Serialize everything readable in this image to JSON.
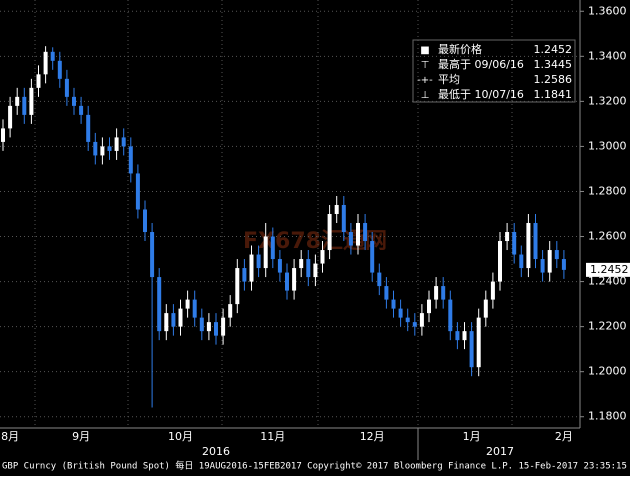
{
  "chart_data": {
    "type": "candlestick",
    "categories": [
      null,
      "8月",
      null,
      null,
      null,
      null,
      null,
      null,
      null,
      null,
      null,
      "9月",
      null,
      null,
      null,
      null,
      null,
      null,
      null,
      null,
      null,
      null,
      null,
      null,
      null,
      "10月",
      null,
      null,
      null,
      null,
      null,
      null,
      null,
      null,
      null,
      null,
      null,
      null,
      "11月",
      null,
      null,
      null,
      null,
      null,
      null,
      null,
      null,
      null,
      null,
      null,
      null,
      null,
      "12月",
      null,
      null,
      null,
      null,
      null,
      null,
      null,
      null,
      null,
      null,
      null,
      null,
      null,
      "1月",
      null,
      null,
      null,
      null,
      null,
      null,
      null,
      null,
      null,
      null,
      null,
      null,
      "2月"
    ],
    "year_categories": [
      null,
      null,
      null,
      null,
      null,
      null,
      null,
      null,
      null,
      null,
      null,
      null,
      null,
      null,
      null,
      null,
      null,
      null,
      null,
      null,
      null,
      null,
      null,
      null,
      null,
      null,
      null,
      null,
      null,
      null,
      "2016",
      null,
      null,
      null,
      null,
      null,
      null,
      null,
      null,
      null,
      null,
      null,
      null,
      null,
      null,
      null,
      null,
      null,
      null,
      null,
      null,
      null,
      null,
      null,
      null,
      null,
      null,
      null,
      null,
      null,
      null,
      null,
      null,
      null,
      null,
      null,
      null,
      null,
      null,
      null,
      "2017",
      null,
      null,
      null,
      null,
      null,
      null,
      null,
      null,
      null
    ],
    "open": [
      1.302,
      1.308,
      1.318,
      1.322,
      1.314,
      1.326,
      1.332,
      1.342,
      1.338,
      1.33,
      1.322,
      1.318,
      1.314,
      1.302,
      1.296,
      1.3,
      1.298,
      1.304,
      1.3,
      1.288,
      1.272,
      1.262,
      1.242,
      1.218,
      1.226,
      1.22,
      1.228,
      1.232,
      1.224,
      1.218,
      1.222,
      1.216,
      1.224,
      1.23,
      1.246,
      1.24,
      1.252,
      1.246,
      1.26,
      1.25,
      1.244,
      1.236,
      1.246,
      1.25,
      1.242,
      1.248,
      1.254,
      1.27,
      1.274,
      1.262,
      1.256,
      1.266,
      1.258,
      1.244,
      1.238,
      1.232,
      1.228,
      1.224,
      1.222,
      1.22,
      1.226,
      1.232,
      1.238,
      1.232,
      1.218,
      1.214,
      1.218,
      1.202,
      1.224,
      1.232,
      1.24,
      1.258,
      1.262,
      1.252,
      1.246,
      1.266,
      1.25,
      1.244,
      1.254,
      1.25
    ],
    "high": [
      1.312,
      1.322,
      1.326,
      1.326,
      1.33,
      1.336,
      1.3445,
      1.344,
      1.342,
      1.334,
      1.326,
      1.322,
      1.318,
      1.306,
      1.304,
      1.304,
      1.308,
      1.308,
      1.304,
      1.292,
      1.276,
      1.266,
      1.246,
      1.23,
      1.23,
      1.232,
      1.236,
      1.236,
      1.228,
      1.226,
      1.226,
      1.228,
      1.234,
      1.25,
      1.25,
      1.256,
      1.256,
      1.266,
      1.264,
      1.254,
      1.248,
      1.25,
      1.254,
      1.254,
      1.252,
      1.258,
      1.274,
      1.278,
      1.278,
      1.266,
      1.27,
      1.27,
      1.262,
      1.248,
      1.242,
      1.236,
      1.232,
      1.228,
      1.226,
      1.23,
      1.236,
      1.242,
      1.242,
      1.236,
      1.222,
      1.222,
      1.222,
      1.228,
      1.236,
      1.244,
      1.262,
      1.266,
      1.266,
      1.256,
      1.27,
      1.27,
      1.254,
      1.258,
      1.258,
      1.254
    ],
    "low": [
      1.298,
      1.304,
      1.314,
      1.31,
      1.31,
      1.322,
      1.328,
      1.334,
      1.326,
      1.318,
      1.314,
      1.31,
      1.298,
      1.292,
      1.292,
      1.294,
      1.294,
      1.296,
      1.284,
      1.268,
      1.258,
      1.1841,
      1.214,
      1.214,
      1.216,
      1.216,
      1.224,
      1.22,
      1.214,
      1.214,
      1.212,
      1.212,
      1.22,
      1.226,
      1.236,
      1.236,
      1.242,
      1.242,
      1.246,
      1.24,
      1.232,
      1.232,
      1.242,
      1.238,
      1.238,
      1.244,
      1.25,
      1.266,
      1.258,
      1.252,
      1.252,
      1.254,
      1.24,
      1.234,
      1.228,
      1.224,
      1.22,
      1.218,
      1.216,
      1.216,
      1.222,
      1.228,
      1.228,
      1.214,
      1.21,
      1.21,
      1.198,
      1.198,
      1.22,
      1.228,
      1.236,
      1.254,
      1.248,
      1.242,
      1.242,
      1.246,
      1.24,
      1.24,
      1.246,
      1.2412
    ],
    "close": [
      1.308,
      1.318,
      1.322,
      1.314,
      1.326,
      1.332,
      1.342,
      1.338,
      1.33,
      1.322,
      1.318,
      1.314,
      1.302,
      1.296,
      1.3,
      1.298,
      1.304,
      1.3,
      1.288,
      1.272,
      1.262,
      1.242,
      1.218,
      1.226,
      1.22,
      1.228,
      1.232,
      1.224,
      1.218,
      1.222,
      1.216,
      1.224,
      1.23,
      1.246,
      1.24,
      1.252,
      1.246,
      1.26,
      1.25,
      1.244,
      1.236,
      1.246,
      1.25,
      1.242,
      1.248,
      1.254,
      1.27,
      1.274,
      1.262,
      1.256,
      1.266,
      1.258,
      1.244,
      1.238,
      1.232,
      1.228,
      1.224,
      1.222,
      1.22,
      1.226,
      1.232,
      1.238,
      1.232,
      1.218,
      1.214,
      1.218,
      1.202,
      1.224,
      1.232,
      1.24,
      1.258,
      1.262,
      1.252,
      1.246,
      1.266,
      1.25,
      1.244,
      1.254,
      1.25,
      1.2452
    ],
    "up_color": "#ffffff",
    "down_color": "#2f7ce8",
    "ylim": [
      1.175,
      1.365
    ],
    "yticks": [
      {
        "value": 1.18,
        "label": "1.1800"
      },
      {
        "value": 1.2,
        "label": "1.2000"
      },
      {
        "value": 1.22,
        "label": "1.2200"
      },
      {
        "value": 1.24,
        "label": "1.2400"
      },
      {
        "value": 1.26,
        "label": "1.2600"
      },
      {
        "value": 1.28,
        "label": "1.2800"
      },
      {
        "value": 1.3,
        "label": "1.3000"
      },
      {
        "value": 1.32,
        "label": "1.3200"
      },
      {
        "value": 1.34,
        "label": "1.3400"
      },
      {
        "value": 1.36,
        "label": "1.3600"
      }
    ],
    "grid": true,
    "last_price": 1.2452,
    "legend": [
      {
        "icon": "■",
        "label": "最新价格",
        "value": 1.2452
      },
      {
        "icon": "⊤",
        "label": "最高于 09/06/16",
        "value": 1.3445
      },
      {
        "icon": "-+-",
        "label": "平均",
        "value": 1.2586
      },
      {
        "icon": "⊥",
        "label": "最低于 10/07/16",
        "value": 1.1841
      }
    ],
    "watermark": "FX678汇通网",
    "footer": "GBP Curncy (British Pound Spot)  每日 19AUG2016-15FEB2017  Copyright© 2017 Bloomberg Finance L.P.  15-Feb-2017 23:35:15"
  }
}
